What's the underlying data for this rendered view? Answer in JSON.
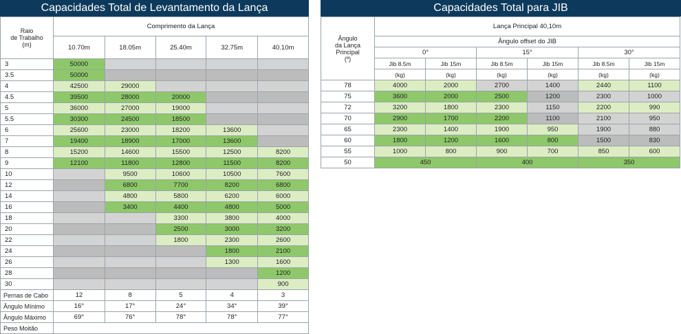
{
  "left": {
    "title": "Capacidades Total de Levantamento da Lança",
    "boom_header": "Comprimento da Lança",
    "radius_header": "Raio\nde Trabalho\n(m)",
    "boom_lengths": [
      "10.70m",
      "18.05m",
      "25.40m",
      "32.75m",
      "40.10m"
    ],
    "rows": [
      {
        "r": "3",
        "v": [
          "50000",
          "",
          "",
          "",
          ""
        ],
        "c": [
          "dg",
          "gy",
          "gy",
          "gy",
          "gy"
        ]
      },
      {
        "r": "3.5",
        "v": [
          "50000",
          "",
          "",
          "",
          ""
        ],
        "c": [
          "dg",
          "dy",
          "dy",
          "dy",
          "dy"
        ]
      },
      {
        "r": "4",
        "v": [
          "42500",
          "29000",
          "",
          "",
          ""
        ],
        "c": [
          "lg",
          "lg",
          "gy",
          "gy",
          "gy"
        ]
      },
      {
        "r": "4.5",
        "v": [
          "39500",
          "28000",
          "20000",
          "",
          ""
        ],
        "c": [
          "dg",
          "dg",
          "dg",
          "dy",
          "dy"
        ]
      },
      {
        "r": "5",
        "v": [
          "36000",
          "27000",
          "19000",
          "",
          ""
        ],
        "c": [
          "lg",
          "lg",
          "lg",
          "gy",
          "gy"
        ]
      },
      {
        "r": "5.5",
        "v": [
          "30300",
          "24500",
          "18500",
          "",
          ""
        ],
        "c": [
          "dg",
          "dg",
          "dg",
          "dy",
          "dy"
        ]
      },
      {
        "r": "6",
        "v": [
          "25600",
          "23000",
          "18200",
          "13600",
          ""
        ],
        "c": [
          "lg",
          "lg",
          "lg",
          "lg",
          "gy"
        ]
      },
      {
        "r": "7",
        "v": [
          "19400",
          "18900",
          "17000",
          "13600",
          ""
        ],
        "c": [
          "dg",
          "dg",
          "dg",
          "dg",
          "dy"
        ]
      },
      {
        "r": "8",
        "v": [
          "15200",
          "14600",
          "15500",
          "12500",
          "8200"
        ],
        "c": [
          "lg",
          "lg",
          "lg",
          "lg",
          "lg"
        ]
      },
      {
        "r": "9",
        "v": [
          "12100",
          "11800",
          "12800",
          "11500",
          "8200"
        ],
        "c": [
          "dg",
          "dg",
          "dg",
          "dg",
          "dg"
        ]
      },
      {
        "r": "10",
        "v": [
          "",
          "9500",
          "10600",
          "10500",
          "7600"
        ],
        "c": [
          "gy",
          "lg",
          "lg",
          "lg",
          "lg"
        ]
      },
      {
        "r": "12",
        "v": [
          "",
          "6800",
          "7700",
          "8200",
          "6800"
        ],
        "c": [
          "dy",
          "dg",
          "dg",
          "dg",
          "dg"
        ]
      },
      {
        "r": "14",
        "v": [
          "",
          "4800",
          "5800",
          "6200",
          "6000"
        ],
        "c": [
          "gy",
          "lg",
          "lg",
          "lg",
          "lg"
        ]
      },
      {
        "r": "16",
        "v": [
          "",
          "3400",
          "4400",
          "4800",
          "5000"
        ],
        "c": [
          "dy",
          "dg",
          "dg",
          "dg",
          "dg"
        ]
      },
      {
        "r": "18",
        "v": [
          "",
          "",
          "3300",
          "3800",
          "4000"
        ],
        "c": [
          "gy",
          "gy",
          "lg",
          "lg",
          "lg"
        ]
      },
      {
        "r": "20",
        "v": [
          "",
          "",
          "2500",
          "3000",
          "3200"
        ],
        "c": [
          "dy",
          "dy",
          "dg",
          "dg",
          "dg"
        ]
      },
      {
        "r": "22",
        "v": [
          "",
          "",
          "1800",
          "2300",
          "2600"
        ],
        "c": [
          "gy",
          "gy",
          "lg",
          "lg",
          "lg"
        ]
      },
      {
        "r": "24",
        "v": [
          "",
          "",
          "",
          "1800",
          "2100"
        ],
        "c": [
          "dy",
          "dy",
          "dy",
          "dg",
          "dg"
        ]
      },
      {
        "r": "26",
        "v": [
          "",
          "",
          "",
          "1300",
          "1600"
        ],
        "c": [
          "gy",
          "gy",
          "gy",
          "lg",
          "lg"
        ]
      },
      {
        "r": "28",
        "v": [
          "",
          "",
          "",
          "",
          "1200"
        ],
        "c": [
          "dy",
          "dy",
          "dy",
          "dy",
          "dg"
        ]
      },
      {
        "r": "30",
        "v": [
          "",
          "",
          "",
          "",
          "900"
        ],
        "c": [
          "gy",
          "gy",
          "gy",
          "gy",
          "lg"
        ]
      }
    ],
    "footer": [
      {
        "label": "Pernas de Cabo",
        "v": [
          "12",
          "8",
          "5",
          "4",
          "3"
        ]
      },
      {
        "label": "Ângulo Mínimo",
        "v": [
          "16°",
          "17°",
          "24°",
          "34°",
          "39°"
        ]
      },
      {
        "label": "Ângulo Máximo",
        "v": [
          "69°",
          "76°",
          "78°",
          "78°",
          "77°"
        ]
      },
      {
        "label": "Peso Moitão",
        "v": []
      }
    ]
  },
  "right": {
    "title": "Capacidades Total para JIB",
    "angle_header": "Ângulo\nda Lança\nPrincipal\n(º)",
    "main_boom": "Lança Principal 40,10m",
    "offset_header": "Ângulo offset do JIB",
    "offsets": [
      "0°",
      "15°",
      "30°"
    ],
    "jib_labels": [
      "Jib 8.5m",
      "Jib 15m",
      "Jib 8.5m",
      "Jib 15m",
      "Jib 8.5m",
      "Jib 15m"
    ],
    "unit": "(kg)",
    "rows": [
      {
        "a": "78",
        "v": [
          "4000",
          "2000",
          "2700",
          "1400",
          "2440",
          "1100"
        ],
        "c": [
          "lg",
          "lg",
          "gy",
          "gy",
          "lg",
          "lg"
        ]
      },
      {
        "a": "75",
        "v": [
          "3600",
          "2000",
          "2500",
          "1200",
          "2300",
          "1000"
        ],
        "c": [
          "dg",
          "dg",
          "dg",
          "dy",
          "gy",
          "gy"
        ]
      },
      {
        "a": "72",
        "v": [
          "3200",
          "1800",
          "2300",
          "1150",
          "2200",
          "990"
        ],
        "c": [
          "lg",
          "lg",
          "lg",
          "gy",
          "lg",
          "lg"
        ]
      },
      {
        "a": "70",
        "v": [
          "2900",
          "1700",
          "2200",
          "1100",
          "2100",
          "950"
        ],
        "c": [
          "dg",
          "dg",
          "dg",
          "dy",
          "gy",
          "gy"
        ]
      },
      {
        "a": "65",
        "v": [
          "2300",
          "1400",
          "1900",
          "950",
          "1900",
          "880"
        ],
        "c": [
          "lg",
          "lg",
          "lg",
          "lg",
          "gy",
          "gy"
        ]
      },
      {
        "a": "60",
        "v": [
          "1800",
          "1200",
          "1600",
          "800",
          "1500",
          "830"
        ],
        "c": [
          "dg",
          "dg",
          "dg",
          "dg",
          "dy",
          "dy"
        ]
      },
      {
        "a": "55",
        "v": [
          "1000",
          "800",
          "900",
          "700",
          "850",
          "600"
        ],
        "c": [
          "lg",
          "lg",
          "lg",
          "lg",
          "lg",
          "lg"
        ]
      }
    ],
    "last_row": {
      "a": "50",
      "v": [
        "450",
        "400",
        "350"
      ]
    }
  }
}
